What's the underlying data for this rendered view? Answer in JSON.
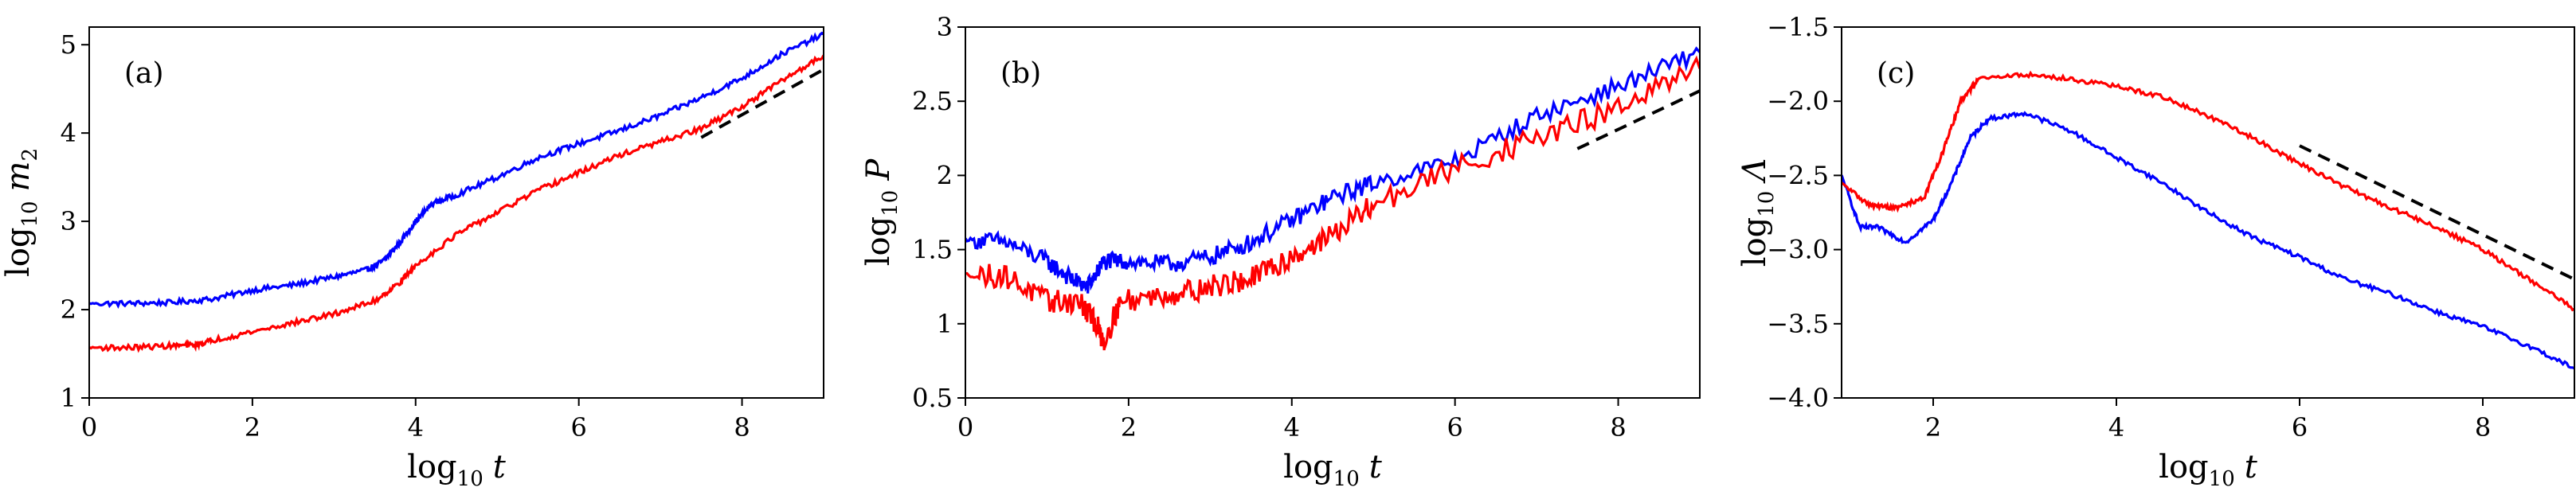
{
  "chart_data": [
    {
      "type": "line",
      "panel_label": "(a)",
      "xlabel": {
        "main": "log",
        "sub": "10",
        "var": "t"
      },
      "ylabel": {
        "main": "log",
        "sub": "10",
        "var": "m",
        "var_sub": "2"
      },
      "xlim": [
        0,
        9
      ],
      "ylim": [
        1,
        5.2
      ],
      "xticks": [
        0,
        2,
        4,
        6,
        8
      ],
      "yticks": [
        1,
        2,
        3,
        4,
        5
      ],
      "series": [
        {
          "color": "#0000ff",
          "noise": 0.03,
          "points": [
            [
              0,
              2.07
            ],
            [
              0.5,
              2.07
            ],
            [
              1.0,
              2.08
            ],
            [
              1.5,
              2.12
            ],
            [
              2.0,
              2.22
            ],
            [
              2.5,
              2.28
            ],
            [
              3.0,
              2.37
            ],
            [
              3.4,
              2.45
            ],
            [
              3.6,
              2.55
            ],
            [
              3.8,
              2.75
            ],
            [
              4.0,
              3.0
            ],
            [
              4.2,
              3.2
            ],
            [
              4.5,
              3.3
            ],
            [
              5.0,
              3.5
            ],
            [
              5.5,
              3.72
            ],
            [
              6.0,
              3.88
            ],
            [
              6.5,
              4.03
            ],
            [
              7.0,
              4.2
            ],
            [
              7.5,
              4.4
            ],
            [
              8.0,
              4.62
            ],
            [
              8.5,
              4.9
            ],
            [
              9.0,
              5.12
            ]
          ]
        },
        {
          "color": "#ff0000",
          "noise": 0.03,
          "points": [
            [
              0,
              1.57
            ],
            [
              0.5,
              1.57
            ],
            [
              1.0,
              1.59
            ],
            [
              1.3,
              1.6
            ],
            [
              1.5,
              1.65
            ],
            [
              2.0,
              1.75
            ],
            [
              2.5,
              1.85
            ],
            [
              3.0,
              1.95
            ],
            [
              3.5,
              2.1
            ],
            [
              3.8,
              2.3
            ],
            [
              4.0,
              2.5
            ],
            [
              4.5,
              2.85
            ],
            [
              5.0,
              3.1
            ],
            [
              5.5,
              3.35
            ],
            [
              6.0,
              3.55
            ],
            [
              6.5,
              3.75
            ],
            [
              7.0,
              3.9
            ],
            [
              7.5,
              4.05
            ],
            [
              8.0,
              4.3
            ],
            [
              8.5,
              4.6
            ],
            [
              9.0,
              4.88
            ]
          ]
        }
      ],
      "reference_line": {
        "color": "#000000",
        "dashed": true,
        "x": [
          7.5,
          9.0
        ],
        "y": [
          3.95,
          4.72
        ]
      }
    },
    {
      "type": "line",
      "panel_label": "(b)",
      "xlabel": {
        "main": "log",
        "sub": "10",
        "var": "t"
      },
      "ylabel": {
        "main": "log",
        "sub": "10",
        "var": "P",
        "var_sub": ""
      },
      "xlim": [
        0,
        9
      ],
      "ylim": [
        0.5,
        3.0
      ],
      "xticks": [
        0,
        2,
        4,
        6,
        8
      ],
      "yticks": [
        0.5,
        1.0,
        1.5,
        2.0,
        2.5,
        3.0
      ],
      "series": [
        {
          "color": "#0000ff",
          "noise": 0.06,
          "points": [
            [
              0,
              1.57
            ],
            [
              0.5,
              1.55
            ],
            [
              1.0,
              1.42
            ],
            [
              1.3,
              1.3
            ],
            [
              1.5,
              1.25
            ],
            [
              1.7,
              1.42
            ],
            [
              2.0,
              1.42
            ],
            [
              2.5,
              1.4
            ],
            [
              3.0,
              1.45
            ],
            [
              3.5,
              1.55
            ],
            [
              4.0,
              1.7
            ],
            [
              4.5,
              1.85
            ],
            [
              5.0,
              1.95
            ],
            [
              6.0,
              2.1
            ],
            [
              7.0,
              2.4
            ],
            [
              8.0,
              2.6
            ],
            [
              9.0,
              2.83
            ]
          ]
        },
        {
          "color": "#ff0000",
          "noise": 0.08,
          "points": [
            [
              0,
              1.33
            ],
            [
              0.5,
              1.32
            ],
            [
              1.0,
              1.15
            ],
            [
              1.4,
              1.15
            ],
            [
              1.6,
              1.0
            ],
            [
              1.7,
              0.88
            ],
            [
              1.9,
              1.15
            ],
            [
              2.5,
              1.2
            ],
            [
              3.0,
              1.25
            ],
            [
              3.5,
              1.3
            ],
            [
              4.0,
              1.45
            ],
            [
              4.5,
              1.6
            ],
            [
              5.0,
              1.8
            ],
            [
              6.0,
              2.05
            ],
            [
              7.0,
              2.25
            ],
            [
              8.0,
              2.45
            ],
            [
              9.0,
              2.72
            ]
          ]
        }
      ],
      "reference_line": {
        "color": "#000000",
        "dashed": true,
        "x": [
          7.5,
          9.0
        ],
        "y": [
          2.18,
          2.57
        ]
      }
    },
    {
      "type": "line",
      "panel_label": "(c)",
      "xlabel": {
        "main": "log",
        "sub": "10",
        "var": "t"
      },
      "ylabel": {
        "main": "log",
        "sub": "10",
        "var": "Λ",
        "var_sub": ""
      },
      "xlim": [
        1,
        9
      ],
      "ylim": [
        -4.0,
        -1.5
      ],
      "xticks": [
        2,
        4,
        6,
        8
      ],
      "yticks": [
        -4.0,
        -3.5,
        -3.0,
        -2.5,
        -2.0,
        -1.5
      ],
      "yticklabels": [
        "−4.0",
        "−3.5",
        "−3.0",
        "−2.5",
        "−2.0",
        "−1.5"
      ],
      "series": [
        {
          "color": "#0000ff",
          "noise": 0.015,
          "points": [
            [
              1.0,
              -2.5
            ],
            [
              1.2,
              -2.85
            ],
            [
              1.4,
              -2.85
            ],
            [
              1.7,
              -2.95
            ],
            [
              2.0,
              -2.8
            ],
            [
              2.2,
              -2.55
            ],
            [
              2.4,
              -2.25
            ],
            [
              2.6,
              -2.12
            ],
            [
              3.0,
              -2.08
            ],
            [
              3.5,
              -2.2
            ],
            [
              4.0,
              -2.38
            ],
            [
              4.5,
              -2.55
            ],
            [
              5.0,
              -2.75
            ],
            [
              5.5,
              -2.92
            ],
            [
              6.0,
              -3.05
            ],
            [
              6.5,
              -3.2
            ],
            [
              7.0,
              -3.3
            ],
            [
              7.5,
              -3.42
            ],
            [
              8.0,
              -3.52
            ],
            [
              8.5,
              -3.65
            ],
            [
              9.0,
              -3.8
            ]
          ]
        },
        {
          "color": "#ff0000",
          "noise": 0.015,
          "points": [
            [
              1.0,
              -2.55
            ],
            [
              1.3,
              -2.7
            ],
            [
              1.6,
              -2.72
            ],
            [
              1.9,
              -2.65
            ],
            [
              2.1,
              -2.35
            ],
            [
              2.3,
              -2.0
            ],
            [
              2.5,
              -1.85
            ],
            [
              3.0,
              -1.82
            ],
            [
              3.5,
              -1.85
            ],
            [
              4.0,
              -1.9
            ],
            [
              4.5,
              -1.97
            ],
            [
              5.0,
              -2.1
            ],
            [
              5.5,
              -2.25
            ],
            [
              6.0,
              -2.42
            ],
            [
              6.5,
              -2.58
            ],
            [
              7.0,
              -2.72
            ],
            [
              7.5,
              -2.85
            ],
            [
              8.0,
              -3.0
            ],
            [
              8.5,
              -3.2
            ],
            [
              9.0,
              -3.4
            ]
          ]
        }
      ],
      "reference_line": {
        "color": "#000000",
        "dashed": true,
        "x": [
          6.0,
          9.0
        ],
        "y": [
          -2.3,
          -3.2
        ]
      }
    }
  ]
}
